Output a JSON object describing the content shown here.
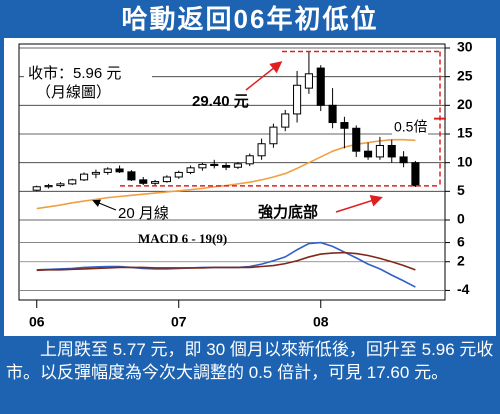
{
  "title": "哈動返回06年初低位",
  "chart_data": {
    "type": "candlestick",
    "x": [
      0,
      1,
      2,
      3,
      4,
      5,
      6,
      7,
      8,
      9,
      10,
      11,
      12,
      13,
      14,
      15,
      16,
      17,
      18,
      19,
      20,
      21,
      22,
      23,
      24,
      25,
      26,
      27,
      28,
      29,
      30,
      31,
      32
    ],
    "xlim": [
      -1.5,
      34.5
    ],
    "xticks": [
      {
        "value": 0,
        "label": "06"
      },
      {
        "value": 12,
        "label": "07"
      },
      {
        "value": 24,
        "label": "08"
      }
    ],
    "ylim": [
      0,
      30
    ],
    "yticks": [
      0,
      5,
      10,
      15,
      20,
      25,
      30
    ],
    "grid": true,
    "up_color": "#ffffff",
    "down_color": "#000000",
    "open": [
      5.2,
      5.8,
      6.0,
      6.3,
      7.0,
      8.0,
      8.3,
      8.9,
      8.4,
      7.0,
      6.4,
      6.7,
      7.5,
      8.3,
      9.1,
      9.7,
      9.5,
      9.2,
      9.8,
      11.2,
      13.3,
      16.2,
      18.5,
      23.0,
      26.5,
      20.0,
      17.0,
      16.0,
      12.0,
      11.0,
      13.0,
      11.0,
      10.0
    ],
    "high": [
      6.0,
      6.3,
      6.6,
      7.2,
      8.3,
      8.8,
      9.2,
      9.5,
      8.7,
      7.5,
      7.0,
      7.8,
      8.6,
      9.5,
      10.0,
      10.5,
      10.0,
      10.1,
      11.6,
      14.2,
      16.8,
      19.2,
      26.0,
      29.4,
      27.0,
      23.0,
      18.0,
      16.5,
      13.5,
      14.5,
      14.0,
      12.0,
      10.3
    ],
    "low": [
      5.0,
      5.5,
      5.7,
      6.1,
      6.8,
      7.3,
      7.9,
      8.2,
      6.8,
      6.1,
      6.0,
      6.5,
      7.2,
      8.0,
      8.6,
      9.0,
      8.7,
      8.9,
      9.4,
      10.5,
      12.6,
      15.5,
      17.0,
      22.0,
      19.0,
      16.0,
      12.5,
      11.0,
      10.5,
      10.5,
      10.0,
      9.2,
      5.77
    ],
    "close": [
      5.8,
      6.0,
      6.3,
      7.0,
      8.0,
      8.3,
      8.9,
      8.4,
      7.0,
      6.4,
      6.7,
      7.5,
      8.3,
      9.1,
      9.7,
      9.5,
      9.2,
      9.8,
      11.2,
      13.3,
      16.2,
      18.5,
      23.5,
      25.5,
      20.0,
      17.0,
      16.0,
      12.0,
      11.0,
      13.0,
      11.0,
      10.0,
      5.96
    ],
    "series": [
      {
        "name": "20 月線",
        "color": "#f0a040",
        "values": [
          2.0,
          2.3,
          2.6,
          3.0,
          3.3,
          3.6,
          3.9,
          4.1,
          4.3,
          4.5,
          4.7,
          4.9,
          5.1,
          5.3,
          5.5,
          5.8,
          6.0,
          6.3,
          6.6,
          7.0,
          7.5,
          8.1,
          9.0,
          10.0,
          11.0,
          12.0,
          12.7,
          13.2,
          13.5,
          13.8,
          14.0,
          14.0,
          13.9
        ]
      }
    ],
    "annotations": {
      "close_label": "收市：5.96 元",
      "chart_label": "（月線圖）",
      "peak_label": "29.40 元",
      "ratio_label": "0.5倍",
      "support_label": "強力底部"
    },
    "macd": {
      "title": "MACD 6 - 19(9)",
      "ylim": [
        -6,
        8
      ],
      "yticks": [
        6,
        2,
        -4
      ],
      "series": [
        {
          "color": "#3060c8",
          "values": [
            0.3,
            0.4,
            0.5,
            0.6,
            0.8,
            0.9,
            1.0,
            1.0,
            0.8,
            0.6,
            0.5,
            0.5,
            0.6,
            0.7,
            0.8,
            0.8,
            0.8,
            0.8,
            1.0,
            1.5,
            2.2,
            3.0,
            4.5,
            5.8,
            6.0,
            5.2,
            4.0,
            2.8,
            1.5,
            0.5,
            -0.8,
            -2.0,
            -3.3
          ]
        },
        {
          "color": "#802818",
          "values": [
            0.2,
            0.3,
            0.3,
            0.4,
            0.5,
            0.6,
            0.7,
            0.8,
            0.8,
            0.8,
            0.7,
            0.7,
            0.7,
            0.7,
            0.7,
            0.8,
            0.8,
            0.8,
            0.8,
            1.0,
            1.2,
            1.6,
            2.2,
            3.0,
            3.6,
            3.8,
            3.9,
            3.7,
            3.3,
            2.7,
            2.0,
            1.2,
            0.3
          ]
        }
      ]
    }
  },
  "caption": "上周跌至 5.77 元，即 30 個月以來新低後，回升至 5.96 元收市。以反彈幅度為今次大調整的 0.5 倍計，可見 17.60 元。"
}
